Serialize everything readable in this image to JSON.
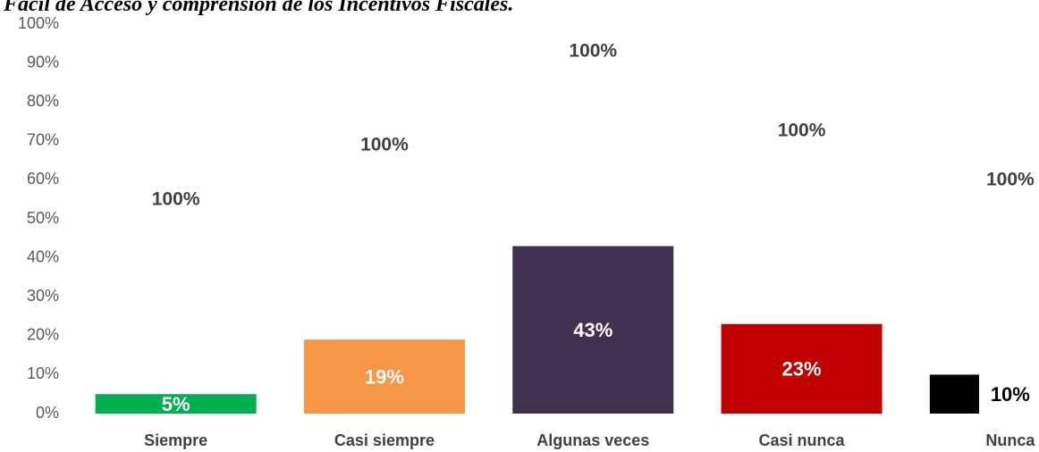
{
  "chart_data": {
    "type": "bar",
    "title": "Fácil de Acceso y comprensión de los Incentivos Fiscales.",
    "categories": [
      "Siempre",
      "Casi siempre",
      "Algunas veces",
      "Casi nunca",
      "Nunca"
    ],
    "values": [
      5,
      19,
      43,
      23,
      10
    ],
    "value_labels": [
      "5%",
      "19%",
      "43%",
      "23%",
      "10%"
    ],
    "colors": [
      "#00b050",
      "#f79646",
      "#403151",
      "#c00000",
      "#000000"
    ],
    "label_colors": [
      "#ffffff",
      "#ffffff",
      "#ffffff",
      "#ffffff",
      "#000000"
    ],
    "annotations": [
      "100%",
      "100%",
      "100%",
      "100%",
      "100%"
    ],
    "ylim": [
      0,
      100
    ],
    "yticks": [
      {
        "value": 0,
        "label": "0%"
      },
      {
        "value": 10,
        "label": "10%"
      },
      {
        "value": 20,
        "label": "20%"
      },
      {
        "value": 30,
        "label": "30%"
      },
      {
        "value": 40,
        "label": "40%"
      },
      {
        "value": 50,
        "label": "50%"
      },
      {
        "value": 60,
        "label": "60%"
      },
      {
        "value": 70,
        "label": "70%"
      },
      {
        "value": 80,
        "label": "80%"
      },
      {
        "value": 90,
        "label": "90%"
      },
      {
        "value": 100,
        "label": "100%"
      }
    ],
    "grid": false
  }
}
